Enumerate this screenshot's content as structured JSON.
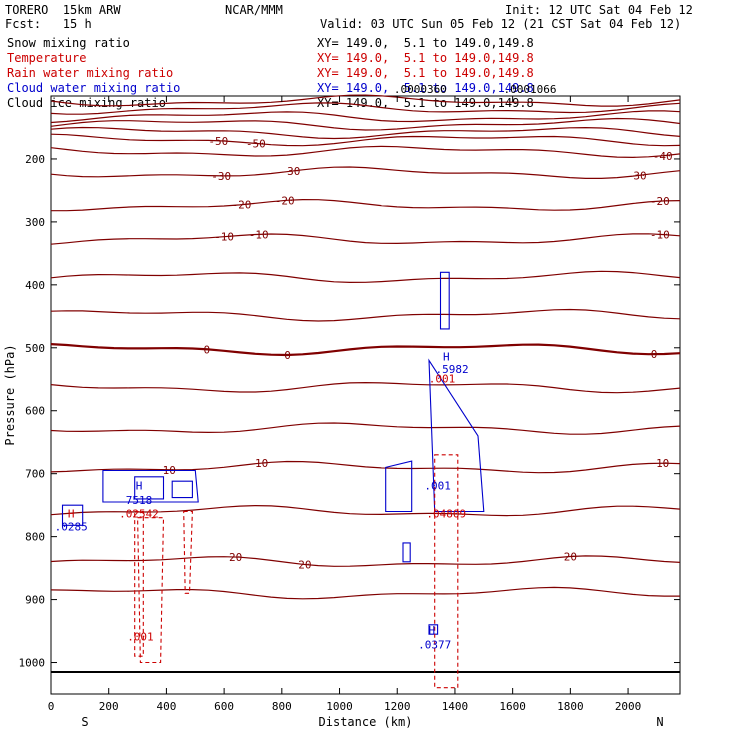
{
  "header": {
    "left1": "TORERO  15km ARW",
    "left2": "Fcst:   15 h",
    "center1": "NCAR/MMM",
    "init": "Init: 12 UTC Sat 04 Feb 12",
    "valid": "Valid: 03 UTC Sun 05 Feb 12 (21 CST Sat 04 Feb 12)"
  },
  "legend": [
    {
      "name": "Snow mixing ratio",
      "xy": "XY= 149.0,  5.1 to 149.0,149.8",
      "color": "#000000"
    },
    {
      "name": "Temperature",
      "xy": "XY= 149.0,  5.1 to 149.0,149.8",
      "color": "#cc0000"
    },
    {
      "name": "Rain water mixing ratio",
      "xy": "XY= 149.0,  5.1 to 149.0,149.8",
      "color": "#cc0000"
    },
    {
      "name": "Cloud water mixing ratio",
      "xy": "XY= 149.0,  5.1 to 149.0,149.8",
      "color": "#0000cc"
    },
    {
      "name": "Cloud ice mixing ratio",
      "xy": "XY= 149.0,  5.1 to 149.0,149.8",
      "color": "#000000"
    }
  ],
  "chart_data": {
    "type": "line",
    "xlabel": "Distance (km)",
    "ylabel": "Pressure (hPa)",
    "xlim": [
      0,
      2180
    ],
    "ylim": [
      1050,
      100
    ],
    "xticks": [
      0,
      200,
      400,
      600,
      800,
      1000,
      1200,
      1400,
      1600,
      1800,
      2000
    ],
    "yticks": [
      200,
      300,
      400,
      500,
      600,
      700,
      800,
      900,
      1000
    ],
    "end_labels": {
      "left": "S",
      "right": "N"
    },
    "temperature_isotherms": [
      {
        "p": 108
      },
      {
        "p": 120
      },
      {
        "p": 133
      },
      {
        "p": 145
      },
      {
        "p": 158
      },
      {
        "p": 170,
        "labels": [
          {
            "x": 580,
            "text": "-50"
          },
          {
            "x": 710,
            "text": "-50"
          }
        ]
      },
      {
        "p": 188,
        "labels": [
          {
            "x": 2120,
            "text": "-40"
          }
        ]
      },
      {
        "p": 222,
        "labels": [
          {
            "x": 590,
            "text": "-30"
          },
          {
            "x": 830,
            "text": "-30"
          },
          {
            "x": 2030,
            "text": "-30"
          }
        ]
      },
      {
        "p": 274,
        "labels": [
          {
            "x": 660,
            "text": "-20"
          },
          {
            "x": 810,
            "text": "-20"
          },
          {
            "x": 2110,
            "text": "-20"
          }
        ]
      },
      {
        "p": 328,
        "labels": [
          {
            "x": 600,
            "text": "-10"
          },
          {
            "x": 720,
            "text": "-10"
          },
          {
            "x": 2110,
            "text": "-10"
          }
        ]
      },
      {
        "p": 388
      },
      {
        "p": 448
      },
      {
        "p": 502,
        "labels": [
          {
            "x": 540,
            "text": "0"
          },
          {
            "x": 820,
            "text": "0"
          },
          {
            "x": 2090,
            "text": "0"
          }
        ]
      },
      {
        "p": 562
      },
      {
        "p": 628
      },
      {
        "p": 690,
        "labels": [
          {
            "x": 410,
            "text": "10"
          },
          {
            "x": 730,
            "text": "10"
          },
          {
            "x": 2120,
            "text": "10"
          }
        ]
      },
      {
        "p": 760
      },
      {
        "p": 840,
        "labels": [
          {
            "x": 640,
            "text": "20"
          },
          {
            "x": 880,
            "text": "20"
          },
          {
            "x": 1800,
            "text": "20"
          }
        ]
      },
      {
        "p": 890
      }
    ],
    "point_labels": [
      {
        "x": 305,
        "p": 725,
        "text": "H",
        "series": "cloud"
      },
      {
        "x": 305,
        "p": 748,
        "text": "7518",
        "series": "cloud"
      },
      {
        "x": 305,
        "p": 770,
        "text": ".02542",
        "series": "rain"
      },
      {
        "x": 70,
        "p": 770,
        "text": "H",
        "series": "rain"
      },
      {
        "x": 70,
        "p": 790,
        "text": ".0285",
        "series": "cloud"
      },
      {
        "x": 310,
        "p": 965,
        "text": ".001",
        "series": "rain"
      },
      {
        "x": 1340,
        "p": 725,
        "text": ".001",
        "series": "cloud"
      },
      {
        "x": 1370,
        "p": 770,
        "text": ".04809",
        "series": "rain"
      },
      {
        "x": 1370,
        "p": 520,
        "text": "H",
        "series": "cloud"
      },
      {
        "x": 1390,
        "p": 540,
        "text": ".5982",
        "series": "cloud"
      },
      {
        "x": 1355,
        "p": 555,
        "text": ".001",
        "series": "rain"
      },
      {
        "x": 1320,
        "p": 955,
        "text": "H",
        "series": "cloud"
      },
      {
        "x": 1330,
        "p": 978,
        "text": ".0377",
        "series": "cloud"
      },
      {
        "x": 1280,
        "p": 95,
        "text": ".0000360",
        "series": "snow"
      },
      {
        "x": 1660,
        "p": 95,
        "text": ".0001066",
        "series": "snow"
      }
    ]
  },
  "colors": {
    "temperature": "#800000",
    "rain": "#cc0000",
    "cloud": "#0000cc"
  }
}
